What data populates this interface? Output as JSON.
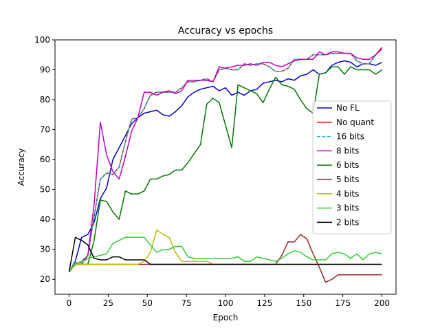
{
  "chart_data": {
    "type": "line",
    "title": "Accuracy vs epochs",
    "xlabel": "Epoch",
    "ylabel": "Accuracy",
    "xlim": [
      -9,
      209
    ],
    "ylim": [
      15,
      100
    ],
    "xticks": [
      0,
      25,
      50,
      75,
      100,
      125,
      150,
      175,
      200
    ],
    "yticks": [
      20,
      30,
      40,
      50,
      60,
      70,
      80,
      90,
      100
    ],
    "grid": false,
    "legend": "center-right",
    "x": [
      0,
      4,
      8,
      12,
      16,
      20,
      24,
      28,
      32,
      36,
      40,
      44,
      48,
      52,
      56,
      60,
      64,
      68,
      72,
      76,
      80,
      84,
      88,
      92,
      96,
      100,
      104,
      108,
      112,
      116,
      120,
      124,
      128,
      132,
      136,
      140,
      144,
      148,
      152,
      156,
      160,
      164,
      168,
      172,
      176,
      180,
      184,
      188,
      192,
      196,
      200
    ],
    "series": [
      {
        "name": "No FL",
        "color": "#0000cc",
        "dashed": false,
        "values": [
          22.5,
          26,
          34,
          35,
          39,
          47,
          50.5,
          60,
          64,
          68,
          72,
          74,
          75.5,
          76,
          76.5,
          75,
          74.5,
          76,
          78,
          81,
          82.5,
          83.5,
          84,
          84.5,
          83,
          84,
          81.5,
          82.5,
          81.5,
          83,
          83.5,
          85.5,
          86,
          86.5,
          86,
          87,
          86.5,
          88,
          88.5,
          90,
          88.5,
          89,
          91.5,
          92.5,
          93,
          92.5,
          91,
          92,
          92,
          91.5,
          92.5
        ]
      },
      {
        "name": "No quant",
        "color": "#dd0000",
        "dashed": false,
        "values": [
          22.5,
          25,
          26,
          28,
          41,
          53.5,
          55.5,
          55,
          57.5,
          66,
          73.5,
          74,
          77,
          81.5,
          82.5,
          82.5,
          82.5,
          82.5,
          84,
          86,
          86,
          86.5,
          87,
          86,
          90,
          90.5,
          90,
          90,
          92,
          91.5,
          92,
          92,
          91,
          89.5,
          89.5,
          90.5,
          93.5,
          93.5,
          93.5,
          95,
          95,
          95,
          95.5,
          95.5,
          95.5,
          95.5,
          93,
          92,
          92,
          95,
          97
        ]
      },
      {
        "name": "16 bits",
        "color": "#22bbcc",
        "dashed": true,
        "values": [
          22.5,
          25,
          26,
          28,
          41,
          53.5,
          55.5,
          55,
          57.5,
          66,
          73.5,
          74,
          77,
          81.5,
          82.5,
          82.5,
          82.5,
          82.5,
          84,
          86,
          86,
          86.5,
          87,
          86,
          90,
          90.5,
          90,
          90,
          92,
          91.5,
          92,
          92,
          91,
          89.5,
          89.5,
          90.5,
          93.5,
          93.5,
          93.5,
          95,
          95,
          95,
          95.5,
          95.5,
          95.5,
          95.5,
          93,
          92,
          92,
          95,
          97.5
        ]
      },
      {
        "name": "8 bits",
        "color": "#bb00bb",
        "dashed": false,
        "values": [
          22.5,
          25,
          25,
          28,
          45,
          72.5,
          61.5,
          56,
          53.5,
          61,
          69.5,
          74,
          82.5,
          82.5,
          81.5,
          82.5,
          83,
          82,
          83,
          86.5,
          86.5,
          86.5,
          86.5,
          86,
          91,
          90.5,
          91,
          91.5,
          91.5,
          92,
          91.5,
          92.5,
          92.5,
          91.5,
          91,
          92,
          93,
          93.5,
          93.5,
          93.5,
          96,
          95,
          96,
          96,
          95.5,
          95.5,
          94,
          93.5,
          93.5,
          95,
          97.5
        ]
      },
      {
        "name": "6 bits",
        "color": "#007700",
        "dashed": false,
        "values": [
          22.5,
          25,
          25,
          25,
          33,
          46.5,
          46,
          42.5,
          40,
          49.5,
          48.5,
          48.5,
          49.5,
          53.5,
          53.5,
          54.5,
          55,
          56.5,
          56.5,
          59,
          62,
          65,
          78.5,
          80.5,
          79,
          71.5,
          64,
          85,
          84,
          83,
          82,
          79,
          83.5,
          87.5,
          85,
          84.5,
          83.5,
          80,
          77,
          75.5,
          88.5,
          89,
          91,
          91,
          88.5,
          91,
          90,
          90,
          90,
          88.5,
          90
        ]
      },
      {
        "name": "5 bits",
        "color": "#992222",
        "dashed": false,
        "values": [
          22.5,
          25,
          25,
          25,
          25,
          25,
          25,
          25,
          25,
          25,
          25,
          25,
          25,
          25,
          25,
          25,
          25,
          25,
          25,
          25,
          25,
          25,
          25,
          25,
          25,
          25,
          25,
          25,
          25,
          25,
          25,
          25,
          25,
          25,
          28,
          32.5,
          32.5,
          35,
          33.5,
          28.5,
          24,
          19,
          20,
          21.5,
          21.5,
          21.5,
          21.5,
          21.5,
          21.5,
          21.5,
          21.5
        ]
      },
      {
        "name": "4 bits",
        "color": "#bbbb00",
        "dashed": false,
        "values": [
          22.5,
          25,
          25,
          25,
          25,
          25,
          25,
          25,
          25,
          25,
          25,
          25,
          26,
          29,
          36.5,
          35,
          34,
          29,
          26,
          26,
          26,
          26,
          26,
          25,
          25,
          25,
          25,
          25,
          25,
          25,
          25,
          25,
          25,
          25,
          25,
          25,
          25,
          25,
          25,
          25,
          25,
          25,
          25,
          25,
          25,
          25,
          25,
          25,
          25,
          25,
          25
        ]
      },
      {
        "name": "3 bits",
        "color": "#33cc33",
        "dashed": false,
        "values": [
          22.5,
          25.5,
          25.5,
          27,
          27.5,
          28,
          28.5,
          32,
          33,
          34,
          34,
          34,
          34,
          31.5,
          29,
          30,
          30,
          31,
          31,
          27.5,
          27,
          27,
          27,
          27,
          27,
          27,
          27,
          27.5,
          26,
          26,
          27.5,
          27,
          26.5,
          26,
          27,
          28.5,
          29.5,
          29,
          27.5,
          26.5,
          26.5,
          26.5,
          28.5,
          29,
          28.5,
          27,
          28.5,
          26.5,
          28.5,
          29,
          28.5
        ]
      },
      {
        "name": "2 bits",
        "color": "#000000",
        "dashed": false,
        "values": [
          22.5,
          34,
          33,
          31.5,
          27,
          26.5,
          26.5,
          27.5,
          27.5,
          26.5,
          26.5,
          26.5,
          26.5,
          25,
          25,
          25,
          25,
          25,
          25,
          25,
          25,
          25,
          25,
          25,
          25,
          25,
          25,
          25,
          25,
          25,
          25,
          25,
          25,
          25,
          25,
          25,
          25,
          25,
          25,
          25,
          25,
          25,
          25,
          25,
          25,
          25,
          25,
          25,
          25,
          25,
          25
        ]
      }
    ]
  }
}
